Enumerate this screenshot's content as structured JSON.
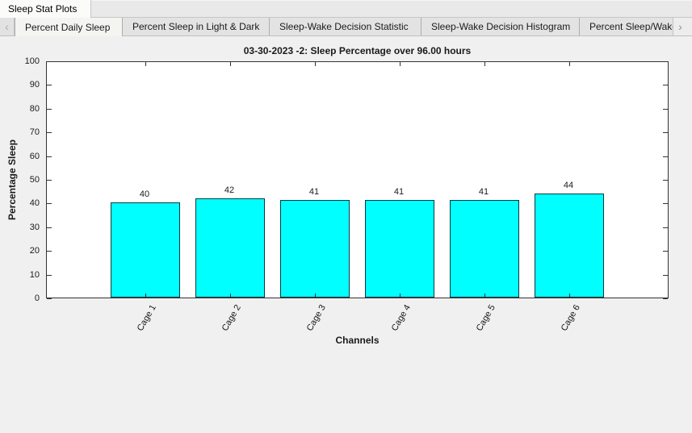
{
  "window": {
    "doc_tab_label": "Sleep Stat Plots"
  },
  "tab_bar": {
    "scroll_left_icon": "‹",
    "scroll_right_icon": "›",
    "tabs": [
      {
        "label": "Percent Daily Sleep",
        "active": true
      },
      {
        "label": "Percent Sleep in Light & Dark",
        "active": false
      },
      {
        "label": "Sleep-Wake Decision Statistic",
        "active": false
      },
      {
        "label": "Sleep-Wake Decision Histogram",
        "active": false
      },
      {
        "label": "Percent Sleep/Wake",
        "active": false,
        "truncated": true
      }
    ]
  },
  "chart_data": {
    "type": "bar",
    "title": "03-30-2023 -2: Sleep Percentage over 96.00 hours",
    "categories": [
      "Cage 1",
      "Cage 2",
      "Cage 3",
      "Cage 4",
      "Cage 5",
      "Cage 6"
    ],
    "values": [
      40,
      42,
      41,
      41,
      41,
      44
    ],
    "value_labels": [
      "40",
      "42",
      "41",
      "41",
      "41",
      "44"
    ],
    "xlabel": "Channels",
    "ylabel": "Percentage Sleep",
    "ylim": [
      0,
      100
    ],
    "ytick_step": 10,
    "grid": false,
    "legend": null,
    "bar_fill_color": "#00FFFF",
    "bar_edge_color": "#063A40",
    "axis_color": "#333333",
    "plot_bg_color": "#FFFFFF",
    "figure_bg_color": "#F0F0F0",
    "x_tick_label_rotation_deg": 60
  }
}
